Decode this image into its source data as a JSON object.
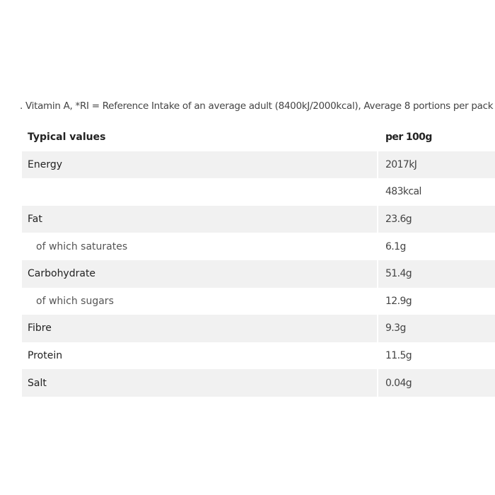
{
  "note": ". Vitamin A, *RI = Reference Intake of an average adult (8400kJ/2000kcal), Average 8 portions per pack",
  "table": {
    "header": [
      "Typical values",
      "per 100g"
    ],
    "rows": [
      {
        "cells": [
          "Energy",
          "2017kJ"
        ],
        "sub": false
      },
      {
        "cells": [
          null,
          "483kcal"
        ],
        "sub": false
      },
      {
        "cells": [
          "Fat",
          "23.6g"
        ],
        "sub": false
      },
      {
        "cells": [
          "of which saturates",
          "6.1g"
        ],
        "sub": true
      },
      {
        "cells": [
          "Carbohydrate",
          "51.4g"
        ],
        "sub": false
      },
      {
        "cells": [
          "of which sugars",
          "12.9g"
        ],
        "sub": true
      },
      {
        "cells": [
          "Fibre",
          "9.3g"
        ],
        "sub": false
      },
      {
        "cells": [
          "Protein",
          "11.5g"
        ],
        "sub": false
      },
      {
        "cells": [
          "Salt",
          "0.04g"
        ],
        "sub": false
      }
    ]
  }
}
